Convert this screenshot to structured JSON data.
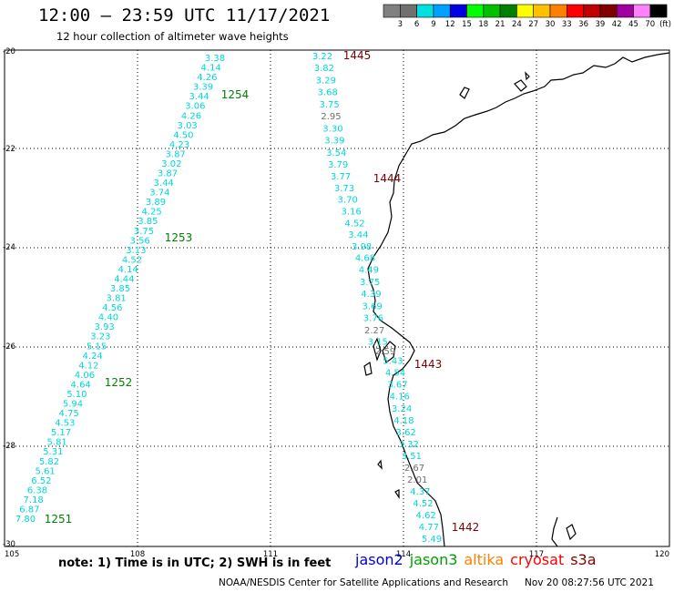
{
  "header": {
    "title": "12:00 – 23:59 UTC 11/17/2021",
    "subtitle": "12 hour collection of altimeter wave heights"
  },
  "legend": {
    "unit": "(ft)",
    "bins": [
      {
        "label": "3",
        "color": "#707070"
      },
      {
        "label": "6",
        "color": "#00e0e0"
      },
      {
        "label": "9",
        "color": "#00a0ff"
      },
      {
        "label": "12",
        "color": "#0000e0"
      },
      {
        "label": "15",
        "color": "#00ff00"
      },
      {
        "label": "18",
        "color": "#00c000"
      },
      {
        "label": "21",
        "color": "#008000"
      },
      {
        "label": "24",
        "color": "#ffff00"
      },
      {
        "label": "27",
        "color": "#ffc000"
      },
      {
        "label": "30",
        "color": "#ff8000"
      },
      {
        "label": "33",
        "color": "#ff0000"
      },
      {
        "label": "36",
        "color": "#c00000"
      },
      {
        "label": "39",
        "color": "#800000"
      },
      {
        "label": "42",
        "color": "#a000a0"
      },
      {
        "label": "45",
        "color": "#ff80ff"
      },
      {
        "label": "70",
        "color": "#000000"
      }
    ],
    "first_color": "#808080"
  },
  "axes": {
    "lat_labels": [
      "-20",
      "-22",
      "-24",
      "-26",
      "-28",
      "-30"
    ],
    "lon_labels": [
      "105",
      "108",
      "111",
      "114",
      "117",
      "120"
    ]
  },
  "tracks": [
    {
      "id": "1254",
      "color": "#008000",
      "values": [
        "3.38",
        "4.14",
        "4.26",
        "3.39",
        "3.44",
        "3.06",
        "4.26",
        "3.03",
        "4.50",
        "4.23",
        "3.87",
        "3.02",
        "3.87",
        "3.44",
        "3.74",
        "3.89",
        "4.25",
        "3.85",
        "3.75",
        "3.56",
        "3.13",
        "4.52",
        "4.14",
        "4.44",
        "3.85",
        "3.81",
        "4.56",
        "4.40",
        "3.93",
        "3.23",
        "5.15",
        "4.24",
        "4.12",
        "4.06",
        "4.64",
        "5.10",
        "5.94",
        "4.75",
        "4.53",
        "5.17",
        "5.81",
        "5.31",
        "5.82",
        "5.61",
        "6.52",
        "6.38",
        "7.18",
        "6.87",
        "7.80"
      ]
    },
    {
      "id": "1445",
      "color": "#800000",
      "values": [
        "3.22",
        "3.82",
        "3.29",
        "3.68",
        "3.75",
        "2.95",
        "3.30",
        "3.39",
        "3.54",
        "3.79",
        "3.77",
        "3.73",
        "3.70",
        "3.16",
        "4.52",
        "3.44",
        "3.98",
        "4.68",
        "4.49",
        "3.75",
        "4.39",
        "3.69",
        "3.76",
        "2.27",
        "3.15",
        "2.59",
        "5.43",
        "4.54",
        "3.67",
        "4.16",
        "3.24",
        "4.18",
        "3.62",
        "3.32",
        "3.51",
        "2.67",
        "2.01",
        "4.37",
        "4.52",
        "4.62",
        "4.77",
        "5.49"
      ]
    }
  ],
  "pass_labels": [
    {
      "text": "1254",
      "color": "#008000"
    },
    {
      "text": "1253",
      "color": "#008000"
    },
    {
      "text": "1252",
      "color": "#008000"
    },
    {
      "text": "1251",
      "color": "#008000"
    },
    {
      "text": "1445",
      "color": "#800000"
    },
    {
      "text": "1444",
      "color": "#800000"
    },
    {
      "text": "1443",
      "color": "#800000"
    },
    {
      "text": "1442",
      "color": "#800000"
    }
  ],
  "note": "note: 1) Time is in UTC; 2) SWH is in feet",
  "satellites": [
    {
      "name": "jason2",
      "color": "#0000e0"
    },
    {
      "name": "jason3",
      "color": "#00a000"
    },
    {
      "name": "altika",
      "color": "#ff8000"
    },
    {
      "name": "cryosat",
      "color": "#ff0000"
    },
    {
      "name": "s3a",
      "color": "#800000"
    }
  ],
  "footer": {
    "credit": "NOAA/NESDIS Center for Satellite Applications and Research",
    "timestamp": "Nov 20 08:27:56 UTC 2021"
  }
}
